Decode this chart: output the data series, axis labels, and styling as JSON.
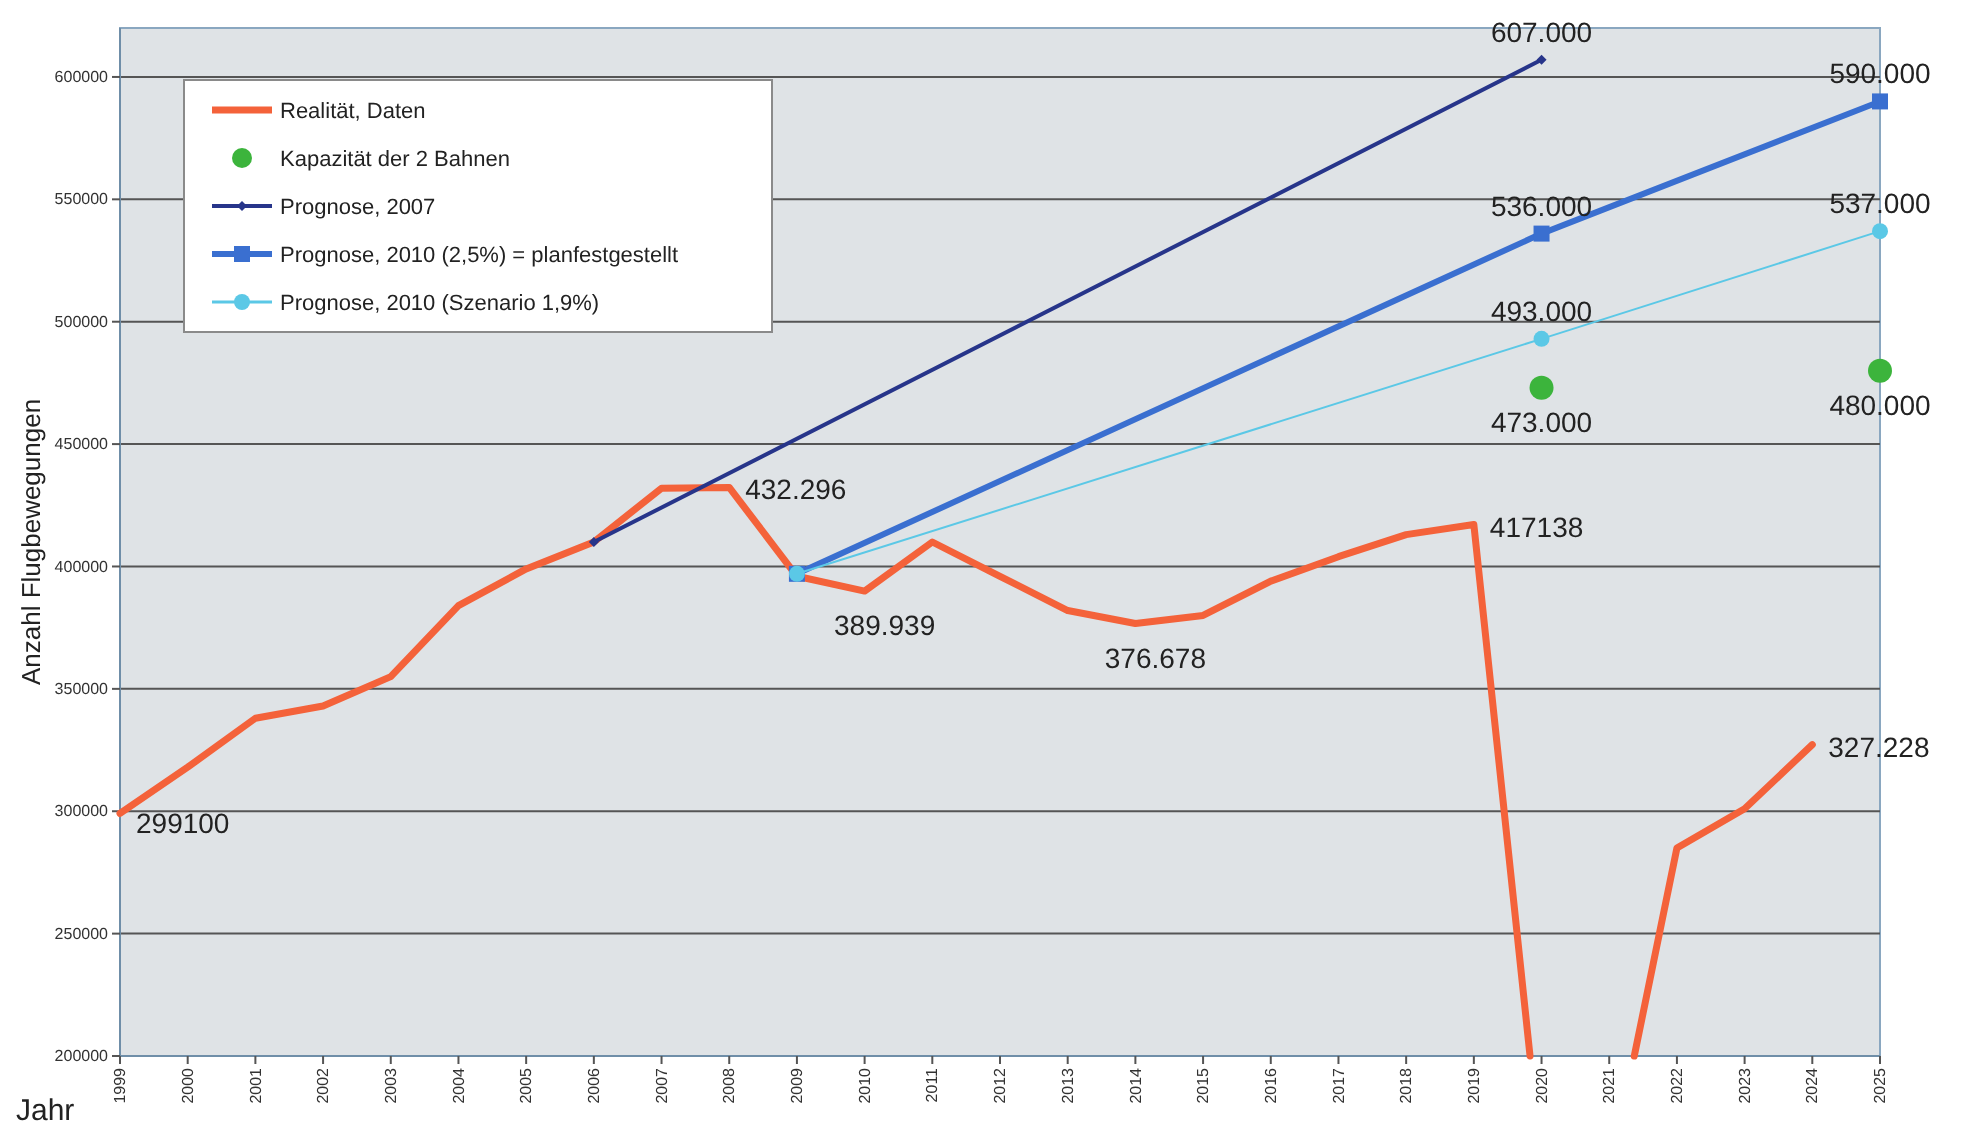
{
  "chart_data": {
    "type": "line",
    "xlabel": "Jahr",
    "ylabel": "Anzahl Flugbewegungen",
    "xlim": [
      1999,
      2025
    ],
    "xticks": [
      1999,
      2000,
      2001,
      2002,
      2003,
      2004,
      2005,
      2006,
      2007,
      2008,
      2009,
      2010,
      2011,
      2012,
      2013,
      2014,
      2015,
      2016,
      2017,
      2018,
      2019,
      2020,
      2021,
      2022,
      2023,
      2024,
      2025
    ],
    "ylim": [
      200000,
      620000
    ],
    "yticks": [
      200000,
      250000,
      300000,
      350000,
      400000,
      450000,
      500000,
      550000,
      600000
    ],
    "grid": "y",
    "legend": "top left",
    "series": [
      {
        "name": "Realität, Daten",
        "color": "#f4623a",
        "marker": "none",
        "x": [
          1999,
          2000,
          2001,
          2002,
          2003,
          2004,
          2005,
          2006,
          2007,
          2008,
          2009,
          2010,
          2011,
          2012,
          2013,
          2014,
          2015,
          2016,
          2017,
          2018,
          2019,
          2019.83,
          2020.5,
          2021.37,
          2022,
          2023,
          2024
        ],
        "values": [
          299100,
          318000,
          338000,
          343000,
          355000,
          384000,
          399000,
          410000,
          432000,
          432296,
          396000,
          389939,
          410000,
          396000,
          382000,
          376678,
          380000,
          394000,
          404000,
          413000,
          417138,
          200000,
          null,
          200000,
          285000,
          301000,
          327228
        ],
        "value_labels": [
          "299100",
          null,
          null,
          null,
          null,
          null,
          null,
          null,
          null,
          "432.296",
          null,
          "389.939",
          null,
          null,
          null,
          "376.678",
          null,
          null,
          null,
          null,
          "417138",
          null,
          null,
          null,
          null,
          null,
          "327.228"
        ]
      },
      {
        "name": "Kapazität der 2 Bahnen",
        "type": "scatter",
        "color": "#3cb43c",
        "marker": "circle",
        "x": [
          2020,
          2025
        ],
        "values": [
          473000,
          480000
        ],
        "value_labels": [
          "473.000",
          "480.000"
        ]
      },
      {
        "name": "Prognose, 2007",
        "color": "#27358a",
        "marker": "diamond",
        "x": [
          2006,
          2020
        ],
        "values": [
          410000,
          607000
        ],
        "value_labels": [
          null,
          "607.000"
        ]
      },
      {
        "name": "Prognose, 2010 (2,5%) = planfestgestellt",
        "color": "#3a6fd0",
        "marker": "square",
        "x": [
          2009,
          2020,
          2025
        ],
        "values": [
          397000,
          536000,
          590000
        ],
        "value_labels": [
          null,
          "536.000",
          "590.000"
        ]
      },
      {
        "name": "Prognose, 2010 (Szenario 1,9%)",
        "color": "#5bc8e6",
        "marker": "circle",
        "x": [
          2009,
          2020,
          2025
        ],
        "values": [
          397000,
          493000,
          537000
        ],
        "value_labels": [
          null,
          "493.000",
          "537.000"
        ]
      }
    ]
  }
}
